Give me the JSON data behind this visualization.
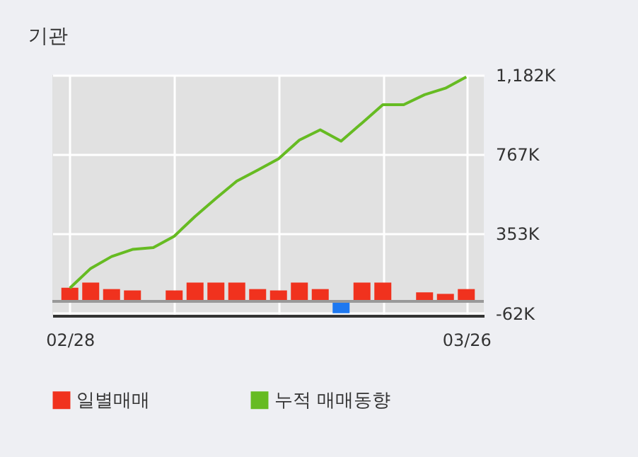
{
  "chart_data": {
    "type": "bar",
    "title": "기관",
    "categories": [
      "02/28",
      null,
      null,
      null,
      null,
      null,
      null,
      null,
      null,
      null,
      null,
      null,
      null,
      null,
      null,
      null,
      null,
      null,
      null,
      "03/26"
    ],
    "series": [
      {
        "name": "일별매매",
        "colors": [
          "#f0321e",
          "#f0321e",
          "#f0321e",
          "#f0321e",
          "#f0321e",
          "#f0321e",
          "#f0321e",
          "#f0321e",
          "#f0321e",
          "#f0321e",
          "#f0321e",
          "#f0321e",
          "#f0321e",
          "#1e78f0",
          "#f0321e",
          "#f0321e",
          "#f0321e",
          "#f0321e",
          "#f0321e",
          "#f0321e"
        ],
        "values": [
          71,
          98,
          64,
          57,
          0,
          57,
          98,
          98,
          98,
          64,
          57,
          98,
          64,
          -62,
          98,
          98,
          0,
          47,
          39,
          64
        ]
      },
      {
        "name": "누적 매매동향",
        "type": "line",
        "color": "#66bb22",
        "values": [
          69,
          172,
          234,
          271,
          281,
          340,
          443,
          537,
          628,
          685,
          744,
          842,
          896,
          837,
          931,
          1027,
          1027,
          1079,
          1113,
          1172
        ]
      }
    ],
    "ylim": [
      -74,
      1182
    ],
    "yticks": [
      {
        "value": -62,
        "label": "-62K"
      },
      {
        "value": 353,
        "label": "353K"
      },
      {
        "value": 767,
        "label": "767K"
      },
      {
        "value": 1182,
        "label": "1,182K"
      }
    ],
    "ref_lines": [
      {
        "axis": "y",
        "value": 0,
        "color": "#999999"
      }
    ],
    "grid": true,
    "legend": "bottom"
  }
}
